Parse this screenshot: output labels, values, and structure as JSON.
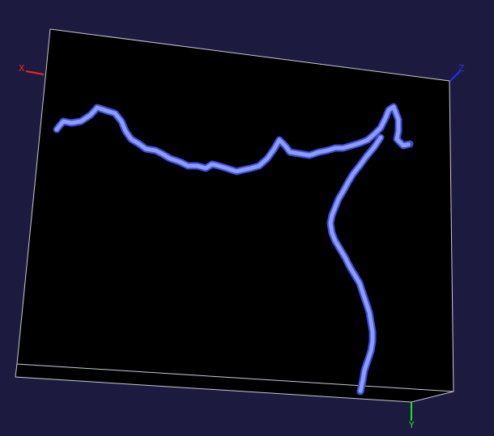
{
  "viewer": {
    "background_color": "#1c1b3f",
    "volume_fill": "#000000",
    "volume_edge_color": "#c8c8d8",
    "structure_color": "#3a4fd8",
    "structure_highlight": "#8f9cff"
  },
  "axes": {
    "x": {
      "label": "X",
      "color": "#ff2020"
    },
    "y": {
      "label": "Y",
      "color": "#20e020"
    },
    "z": {
      "label": "Z",
      "color": "#2030ff"
    }
  }
}
